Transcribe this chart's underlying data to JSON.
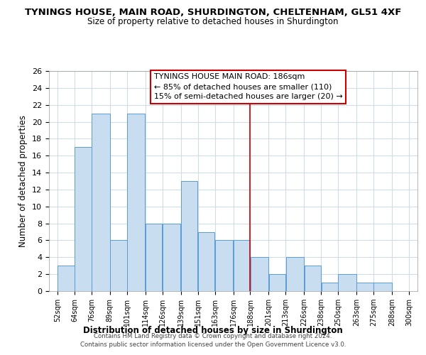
{
  "title": "TYNINGS HOUSE, MAIN ROAD, SHURDINGTON, CHELTENHAM, GL51 4XF",
  "subtitle": "Size of property relative to detached houses in Shurdington",
  "xlabel": "Distribution of detached houses by size in Shurdington",
  "ylabel": "Number of detached properties",
  "bin_edges": [
    52,
    64,
    76,
    89,
    101,
    114,
    126,
    139,
    151,
    163,
    176,
    188,
    201,
    213,
    226,
    238,
    250,
    263,
    275,
    288,
    300
  ],
  "bin_labels": [
    "52sqm",
    "64sqm",
    "76sqm",
    "89sqm",
    "101sqm",
    "114sqm",
    "126sqm",
    "139sqm",
    "151sqm",
    "163sqm",
    "176sqm",
    "188sqm",
    "201sqm",
    "213sqm",
    "226sqm",
    "238sqm",
    "250sqm",
    "263sqm",
    "275sqm",
    "288sqm",
    "300sqm"
  ],
  "counts": [
    3,
    17,
    21,
    6,
    21,
    8,
    8,
    13,
    7,
    6,
    6,
    4,
    2,
    4,
    3,
    1,
    2,
    1,
    1,
    0
  ],
  "bar_color": "#c8ddf0",
  "bar_edge_color": "#5b9bd5",
  "vline_x": 188,
  "vline_color": "#cc0000",
  "ylim": [
    0,
    26
  ],
  "yticks": [
    0,
    2,
    4,
    6,
    8,
    10,
    12,
    14,
    16,
    18,
    20,
    22,
    24,
    26
  ],
  "annotation_title": "TYNINGS HOUSE MAIN ROAD: 186sqm",
  "annotation_line1": "← 85% of detached houses are smaller (110)",
  "annotation_line2": "15% of semi-detached houses are larger (20) →",
  "annotation_box_color": "#ffffff",
  "annotation_box_edge": "#cc0000",
  "footer_line1": "Contains HM Land Registry data © Crown copyright and database right 2024.",
  "footer_line2": "Contains public sector information licensed under the Open Government Licence v3.0.",
  "background_color": "#ffffff",
  "grid_color": "#d0dce8"
}
